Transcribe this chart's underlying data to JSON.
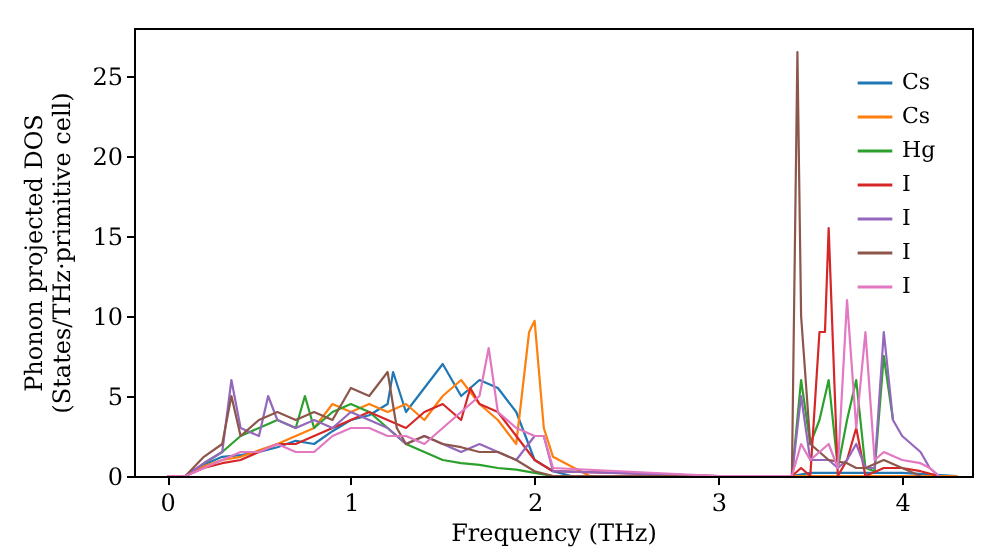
{
  "chart_data": {
    "type": "line",
    "xlabel": "Frequency (THz)",
    "ylabel": "Phonon projected DOS\n(States/THz·primitive cell)",
    "xlim": [
      -0.18,
      4.38
    ],
    "ylim": [
      0,
      28
    ],
    "xticks": [
      0,
      1,
      2,
      3,
      4
    ],
    "yticks": [
      0,
      5,
      10,
      15,
      20,
      25
    ],
    "grid": false,
    "legend": "top right",
    "marker": "none",
    "line_style": "solid",
    "series": [
      {
        "name": "Cs",
        "color": "#1f77b4",
        "x": [
          0,
          0.1,
          0.2,
          0.3,
          0.4,
          0.5,
          0.6,
          0.7,
          0.8,
          0.9,
          1.0,
          1.1,
          1.2,
          1.23,
          1.3,
          1.4,
          1.5,
          1.6,
          1.7,
          1.8,
          1.9,
          2.0,
          2.1,
          2.2,
          3.0,
          3.4,
          3.5,
          4.0,
          4.3
        ],
        "values": [
          0,
          0,
          0.7,
          1.2,
          1.3,
          1.5,
          1.8,
          2.2,
          2.0,
          2.8,
          3.5,
          3.8,
          4.5,
          6.5,
          4.0,
          5.5,
          7.0,
          5.0,
          6.0,
          5.5,
          4.0,
          1.0,
          0.3,
          0,
          0,
          0,
          0.2,
          0.2,
          0
        ]
      },
      {
        "name": "Cs",
        "color": "#ff7f0e",
        "x": [
          0,
          0.1,
          0.2,
          0.3,
          0.4,
          0.5,
          0.6,
          0.7,
          0.8,
          0.9,
          1.0,
          1.1,
          1.2,
          1.3,
          1.4,
          1.5,
          1.6,
          1.7,
          1.8,
          1.9,
          1.97,
          2.0,
          2.05,
          2.1,
          2.2,
          2.3,
          3.0,
          3.4,
          4.3
        ],
        "values": [
          0,
          0,
          0.6,
          1.0,
          1.2,
          1.6,
          2.0,
          2.5,
          3.0,
          4.5,
          4.0,
          4.5,
          4.0,
          4.5,
          3.5,
          5.0,
          6.0,
          4.5,
          3.5,
          2.0,
          9.0,
          9.7,
          3.0,
          1.2,
          0.6,
          0,
          0,
          0,
          0
        ]
      },
      {
        "name": "Hg",
        "color": "#2ca02c",
        "x": [
          0.2,
          0.3,
          0.4,
          0.5,
          0.6,
          0.7,
          0.75,
          0.8,
          0.9,
          1.0,
          1.1,
          1.2,
          1.3,
          1.4,
          1.5,
          1.6,
          1.7,
          1.8,
          1.9,
          2.0,
          2.1,
          3.0,
          3.4,
          3.45,
          3.5,
          3.55,
          3.6,
          3.65,
          3.7,
          3.75,
          3.8,
          3.85,
          3.9,
          3.95
        ],
        "values": [
          0.8,
          1.5,
          2.5,
          3.0,
          3.5,
          3.0,
          5.0,
          3.0,
          4.0,
          4.5,
          4.0,
          3.0,
          2.0,
          1.5,
          1.0,
          0.8,
          0.7,
          0.5,
          0.4,
          0.2,
          0,
          0,
          0,
          6.0,
          2.0,
          3.5,
          6.0,
          0.5,
          3.5,
          6.0,
          0.5,
          0.3,
          7.5,
          3.5
        ]
      },
      {
        "name": "I",
        "color": "#d62728",
        "x": [
          0,
          0.1,
          0.2,
          0.3,
          0.4,
          0.5,
          0.6,
          0.7,
          0.8,
          0.9,
          1.0,
          1.1,
          1.2,
          1.3,
          1.4,
          1.5,
          1.6,
          1.65,
          1.7,
          1.8,
          1.9,
          2.0,
          2.1,
          3.0,
          3.4,
          3.45,
          3.5,
          3.55,
          3.58,
          3.6,
          3.65,
          3.7,
          3.75,
          3.8,
          3.9,
          4.0,
          4.1,
          4.2
        ],
        "values": [
          0,
          0,
          0.5,
          0.8,
          1.0,
          1.5,
          2.0,
          2.0,
          2.5,
          3.0,
          3.5,
          4.0,
          3.5,
          3.0,
          4.0,
          4.5,
          3.5,
          5.5,
          4.5,
          4.0,
          2.5,
          1.0,
          0.3,
          0,
          0,
          0.5,
          0,
          9.0,
          9.0,
          15.5,
          0,
          1.0,
          3.0,
          0,
          0.5,
          0.5,
          0.3,
          0
        ]
      },
      {
        "name": "I",
        "color": "#9467bd",
        "x": [
          0,
          0.1,
          0.2,
          0.3,
          0.35,
          0.4,
          0.5,
          0.55,
          0.6,
          0.7,
          0.8,
          0.9,
          1.0,
          1.1,
          1.2,
          1.3,
          1.4,
          1.5,
          1.6,
          1.7,
          1.8,
          1.9,
          2.0,
          2.05,
          2.1,
          3.0,
          3.4,
          3.45,
          3.5,
          3.55,
          3.6,
          3.65,
          3.7,
          3.75,
          3.8,
          3.85,
          3.9,
          3.95,
          4.0,
          4.05,
          4.1,
          4.15,
          4.2
        ],
        "values": [
          0,
          0,
          0.8,
          1.5,
          6.0,
          3.0,
          2.5,
          5.0,
          3.5,
          3.0,
          3.5,
          3.0,
          4.0,
          3.5,
          3.0,
          2.0,
          2.5,
          2.0,
          1.5,
          2.0,
          1.5,
          1.0,
          2.5,
          2.5,
          0.3,
          0,
          0,
          5.0,
          1.0,
          1.0,
          1.0,
          0.5,
          1.0,
          2.0,
          0.5,
          0.5,
          9.0,
          3.5,
          2.5,
          2.0,
          1.5,
          0.5,
          0
        ]
      },
      {
        "name": "I",
        "color": "#8c564b",
        "x": [
          0,
          0.1,
          0.2,
          0.3,
          0.35,
          0.4,
          0.5,
          0.6,
          0.7,
          0.8,
          0.9,
          1.0,
          1.1,
          1.2,
          1.25,
          1.3,
          1.4,
          1.5,
          1.6,
          1.7,
          1.8,
          1.9,
          2.0,
          2.1,
          3.0,
          3.4,
          3.43,
          3.45,
          3.5,
          3.6,
          3.7,
          3.75,
          3.8,
          3.9,
          4.0,
          4.1
        ],
        "values": [
          0,
          0,
          1.2,
          2.0,
          5.0,
          2.5,
          3.5,
          4.0,
          3.5,
          4.0,
          3.5,
          5.5,
          5.0,
          6.5,
          3.0,
          2.0,
          2.5,
          2.0,
          1.8,
          1.5,
          1.5,
          1.0,
          0.3,
          0,
          0,
          0,
          26.5,
          10.0,
          2.0,
          1.0,
          0.8,
          0.5,
          0.5,
          1.0,
          0.5,
          0
        ]
      },
      {
        "name": "I",
        "color": "#e377c2",
        "x": [
          0,
          0.1,
          0.2,
          0.3,
          0.4,
          0.5,
          0.6,
          0.7,
          0.8,
          0.9,
          1.0,
          1.1,
          1.2,
          1.3,
          1.4,
          1.5,
          1.6,
          1.7,
          1.75,
          1.8,
          1.9,
          2.0,
          2.05,
          2.1,
          3.0,
          3.4,
          3.45,
          3.5,
          3.6,
          3.65,
          3.7,
          3.75,
          3.8,
          3.85,
          3.9,
          4.0,
          4.1,
          4.15,
          4.2
        ],
        "values": [
          0,
          0,
          0.5,
          1.0,
          1.5,
          1.5,
          2.0,
          1.5,
          1.5,
          2.5,
          3.0,
          3.0,
          2.5,
          2.5,
          2.0,
          3.0,
          4.0,
          5.0,
          8.0,
          4.0,
          3.0,
          2.5,
          2.5,
          0.5,
          0,
          0,
          2.0,
          1.0,
          2.0,
          0.5,
          11.0,
          3.0,
          9.0,
          1.0,
          1.5,
          1.0,
          0.8,
          0.5,
          0
        ]
      }
    ]
  }
}
